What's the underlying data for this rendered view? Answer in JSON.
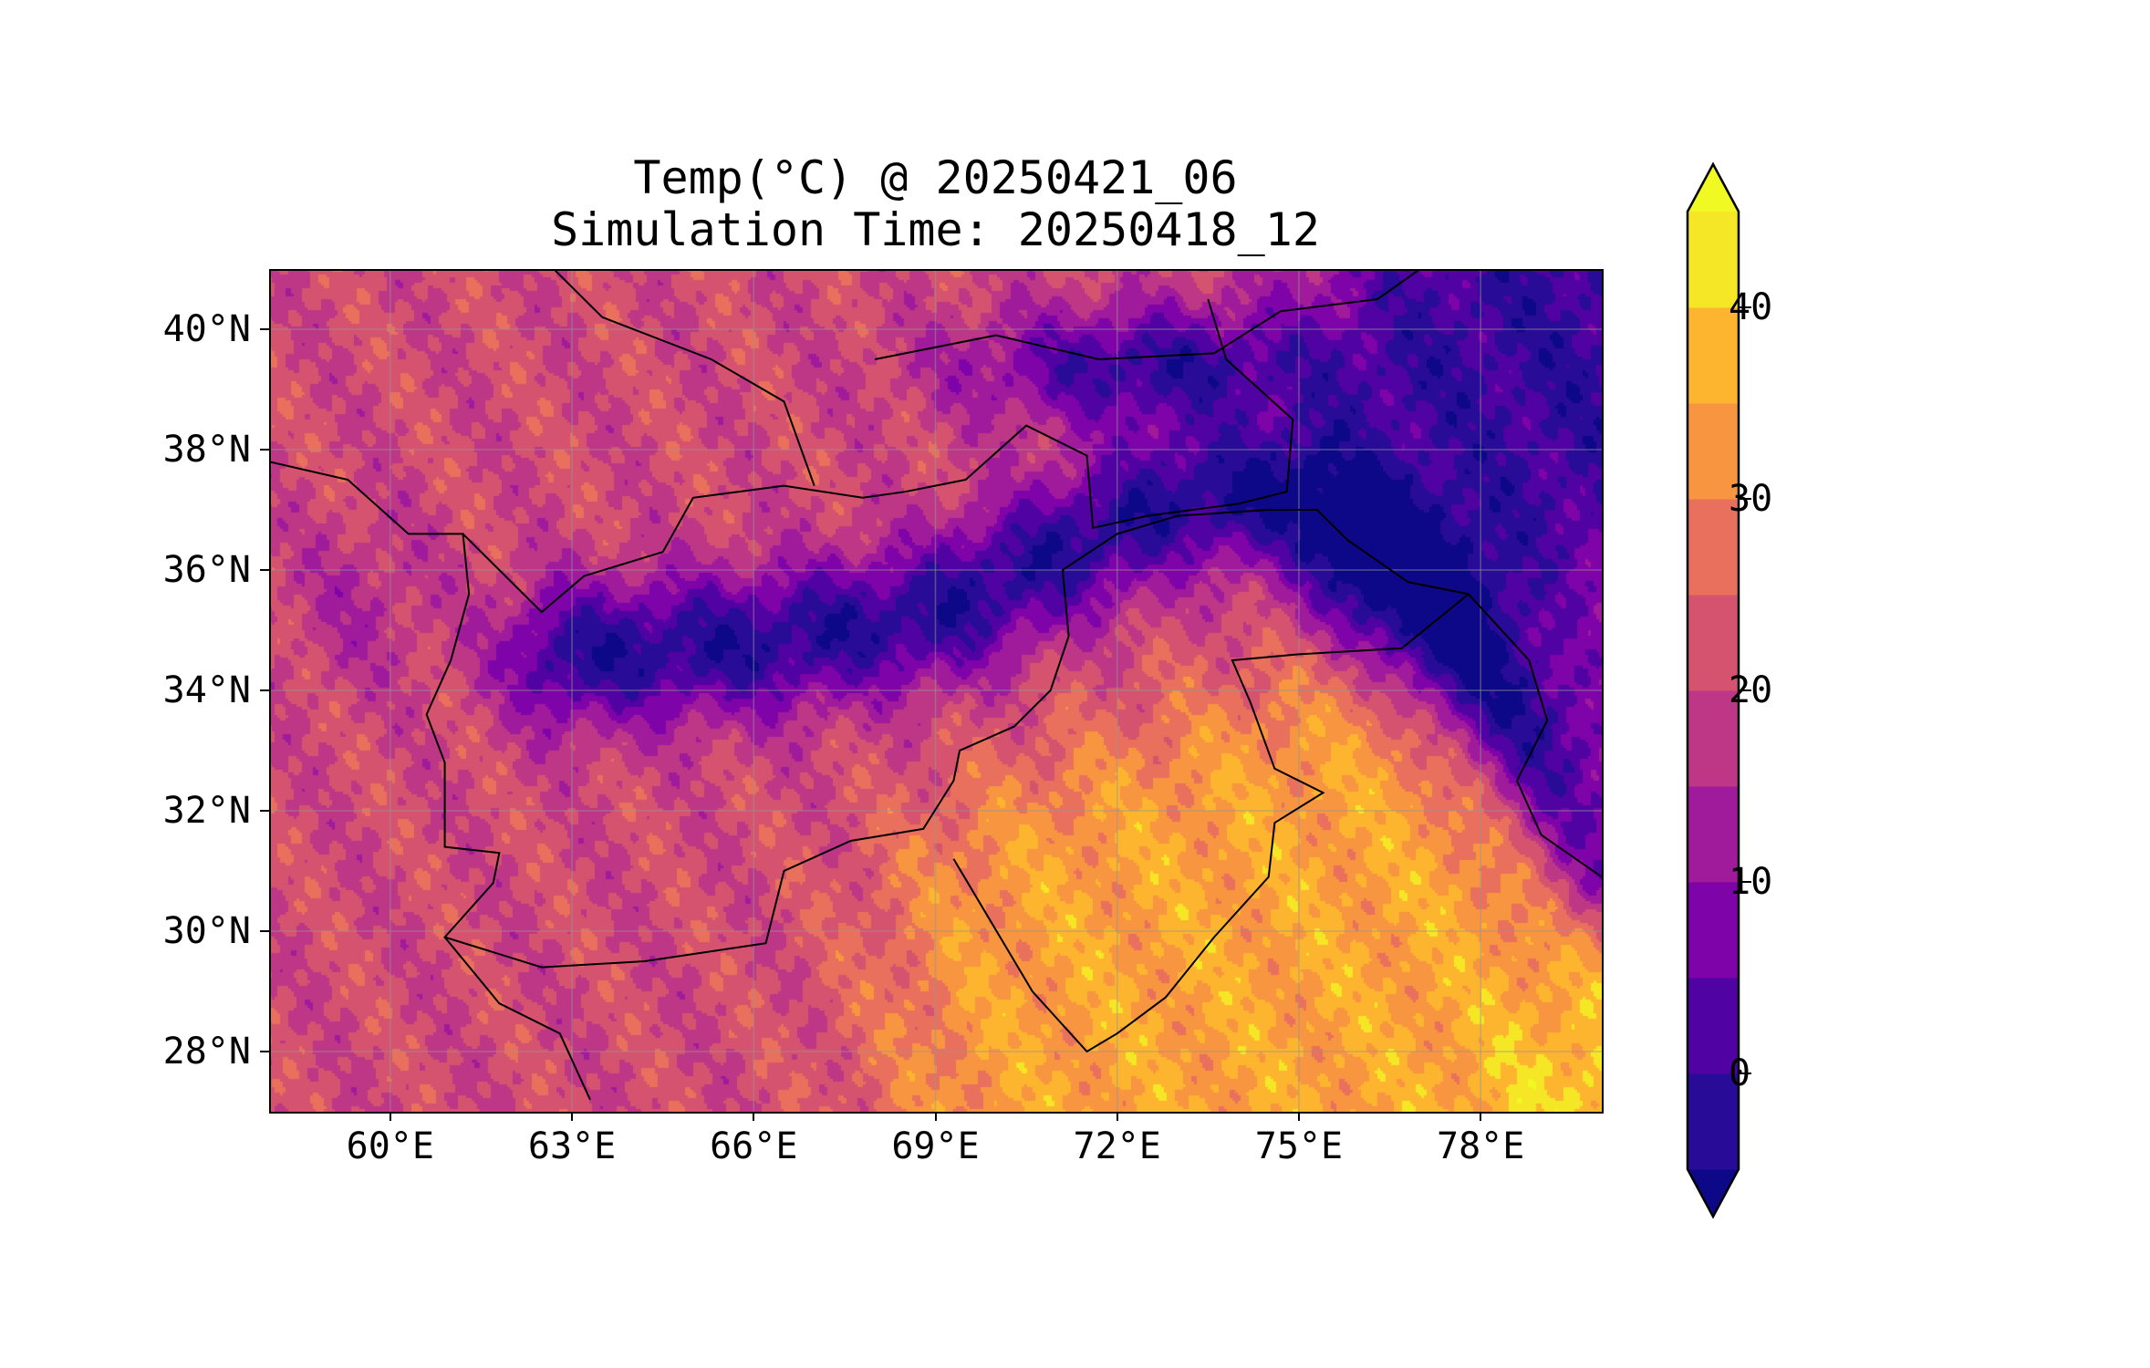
{
  "title": {
    "line1": "Temp(°C) @ 20250421_06",
    "line2": "Simulation Time: 20250418_12"
  },
  "map": {
    "extent": {
      "lon_min": 58,
      "lon_max": 80,
      "lat_min": 27,
      "lat_max": 41
    },
    "lon_ticks": [
      {
        "v": 60,
        "label": "60°E"
      },
      {
        "v": 63,
        "label": "63°E"
      },
      {
        "v": 66,
        "label": "66°E"
      },
      {
        "v": 69,
        "label": "69°E"
      },
      {
        "v": 72,
        "label": "72°E"
      },
      {
        "v": 75,
        "label": "75°E"
      },
      {
        "v": 78,
        "label": "78°E"
      }
    ],
    "lat_ticks": [
      {
        "v": 28,
        "label": "28°N"
      },
      {
        "v": 30,
        "label": "30°N"
      },
      {
        "v": 32,
        "label": "32°N"
      },
      {
        "v": 34,
        "label": "34°N"
      },
      {
        "v": 36,
        "label": "36°N"
      },
      {
        "v": 38,
        "label": "38°N"
      },
      {
        "v": 40,
        "label": "40°N"
      }
    ],
    "gridlines": true
  },
  "colorbar": {
    "levels": [
      -5,
      0,
      5,
      10,
      15,
      20,
      25,
      30,
      35,
      40,
      45
    ],
    "extend": "both",
    "colors": [
      "#280b97",
      "#5002a2",
      "#7e03a8",
      "#a01a9c",
      "#bd3786",
      "#d5536f",
      "#e9705c",
      "#f89540",
      "#fdb42f",
      "#f5e626"
    ],
    "under_color": "#0d0887",
    "over_color": "#f0f921",
    "ticks": [
      {
        "v": 0,
        "label": "0"
      },
      {
        "v": 10,
        "label": "10"
      },
      {
        "v": 20,
        "label": "20"
      },
      {
        "v": 30,
        "label": "30"
      },
      {
        "v": 40,
        "label": "40"
      }
    ]
  }
}
